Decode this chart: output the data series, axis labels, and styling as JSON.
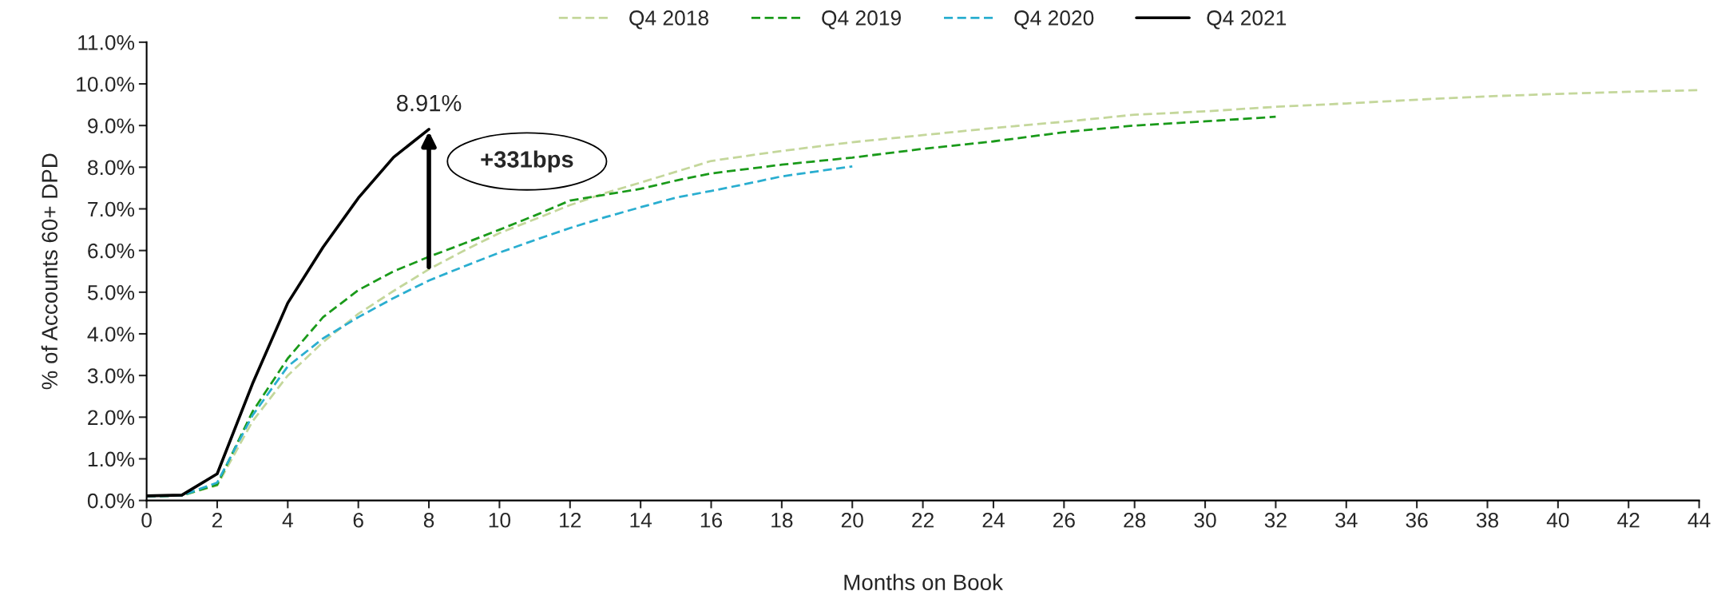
{
  "chart_data": {
    "type": "line",
    "xlabel": "Months on Book",
    "ylabel": "% of Accounts 60+ DPD",
    "series": [
      {
        "name": "Q4 2018",
        "color": "#c4d79b",
        "line_style": "dashed",
        "x": [
          0,
          1,
          2,
          3,
          4,
          5,
          6,
          7,
          8,
          9,
          10,
          11,
          12,
          13,
          14,
          16,
          18,
          20,
          22,
          24,
          26,
          28,
          30,
          32,
          34,
          36,
          38,
          40,
          42,
          44
        ],
        "values": [
          0.1,
          0.12,
          0.36,
          1.9,
          3.0,
          3.8,
          4.48,
          5.03,
          5.55,
          6.0,
          6.42,
          6.75,
          7.09,
          7.38,
          7.63,
          8.15,
          8.39,
          8.6,
          8.77,
          8.94,
          9.09,
          9.26,
          9.34,
          9.45,
          9.53,
          9.62,
          9.7,
          9.76,
          9.81,
          9.85
        ]
      },
      {
        "name": "Q4 2019",
        "color": "#1a9a1a",
        "line_style": "dashed",
        "x": [
          0,
          1,
          2,
          3,
          4,
          5,
          6,
          7,
          8,
          9,
          10,
          11,
          12,
          13,
          14,
          15,
          16,
          18,
          20,
          22,
          24,
          26,
          28,
          30,
          32
        ],
        "values": [
          0.1,
          0.12,
          0.38,
          2.13,
          3.41,
          4.4,
          5.05,
          5.5,
          5.85,
          6.17,
          6.5,
          6.84,
          7.2,
          7.34,
          7.48,
          7.68,
          7.85,
          8.06,
          8.23,
          8.44,
          8.62,
          8.84,
          9.0,
          9.1,
          9.21
        ]
      },
      {
        "name": "Q4 2020",
        "color": "#2aaed0",
        "line_style": "dashed",
        "x": [
          0,
          1,
          2,
          3,
          4,
          5,
          6,
          7,
          8,
          9,
          10,
          11,
          12,
          13,
          14,
          15,
          16,
          17,
          18,
          19,
          20
        ],
        "values": [
          0.1,
          0.12,
          0.43,
          2.04,
          3.22,
          3.89,
          4.4,
          4.86,
          5.28,
          5.62,
          5.95,
          6.25,
          6.54,
          6.8,
          7.04,
          7.27,
          7.43,
          7.6,
          7.78,
          7.9,
          8.02
        ]
      },
      {
        "name": "Q4 2021",
        "color": "#000000",
        "line_style": "solid",
        "x": [
          0,
          1,
          2,
          3,
          4,
          5,
          6,
          7,
          8
        ],
        "values": [
          0.11,
          0.13,
          0.64,
          2.8,
          4.74,
          6.08,
          7.26,
          8.24,
          8.91
        ]
      }
    ],
    "xlim": [
      0,
      44
    ],
    "xticks": [
      0,
      2,
      4,
      6,
      8,
      10,
      12,
      14,
      16,
      18,
      20,
      22,
      24,
      26,
      28,
      30,
      32,
      34,
      36,
      38,
      40,
      42,
      44
    ],
    "ylim": [
      0,
      11
    ],
    "yticks": [
      {
        "value": 0,
        "label": "0.0%"
      },
      {
        "value": 1,
        "label": "1.0%"
      },
      {
        "value": 2,
        "label": "2.0%"
      },
      {
        "value": 3,
        "label": "3.0%"
      },
      {
        "value": 4,
        "label": "4.0%"
      },
      {
        "value": 5,
        "label": "5.0%"
      },
      {
        "value": 6,
        "label": "6.0%"
      },
      {
        "value": 7,
        "label": "7.0%"
      },
      {
        "value": 8,
        "label": "8.0%"
      },
      {
        "value": 9,
        "label": "9.0%"
      },
      {
        "value": 10,
        "label": "10.0%"
      },
      {
        "value": 11,
        "label": "11.0%"
      }
    ],
    "annotations": [
      {
        "text": "8.91%",
        "x": 8,
        "y": 8.91
      },
      "+331bps"
    ],
    "legend": "top",
    "grid": false,
    "marker": "none"
  }
}
